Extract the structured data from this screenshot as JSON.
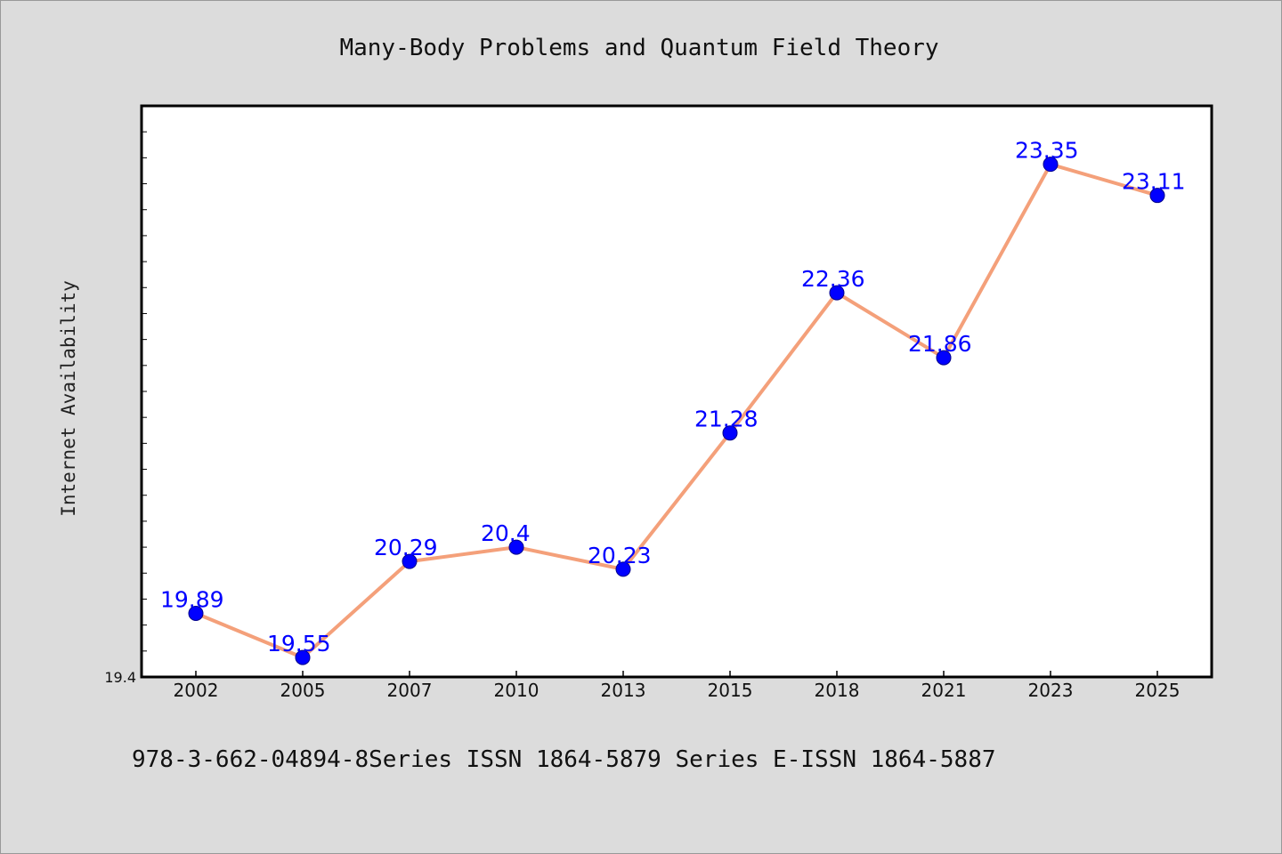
{
  "chart_data": {
    "type": "line",
    "title": "Many-Body Problems and Quantum Field Theory",
    "ylabel": "Internet Availability",
    "xlabel": "",
    "categories": [
      "2002",
      "2005",
      "2007",
      "2010",
      "2013",
      "2015",
      "2018",
      "2021",
      "2023",
      "2025"
    ],
    "values": [
      19.89,
      19.55,
      20.29,
      20.4,
      20.23,
      21.28,
      22.36,
      21.86,
      23.35,
      23.11
    ],
    "data_labels": [
      "19.89",
      "19.55",
      "20.29",
      "20.4",
      "20.23",
      "21.28",
      "22.36",
      "21.86",
      "23.35",
      "23.11"
    ],
    "y_tick_labels": [
      "19.4"
    ],
    "ylim": [
      19.4,
      23.8
    ],
    "grid": false,
    "line_color": "#f4a07a",
    "marker_color": "#0000ff",
    "label_color": "#0000ff"
  },
  "footer": {
    "text": "978-3-662-04894-8Series ISSN 1864-5879 Series E-ISSN 1864-5887"
  }
}
